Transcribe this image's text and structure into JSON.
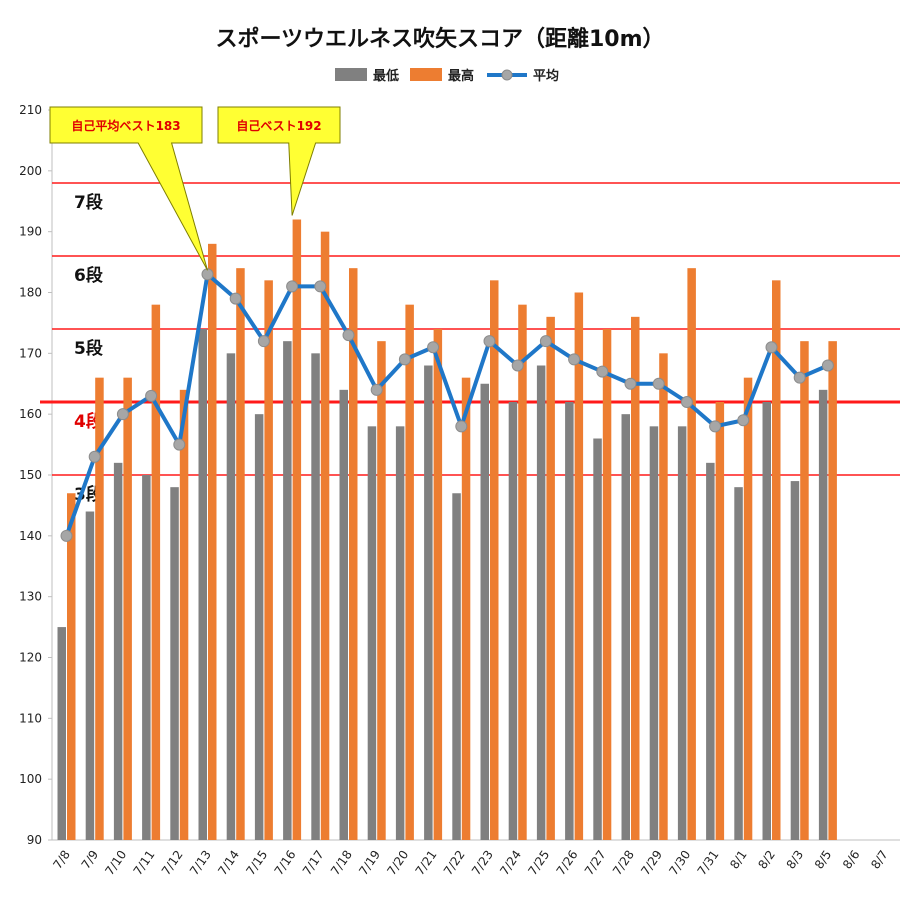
{
  "chart_data": {
    "type": "bar",
    "title": "スポーツウエルネス吹矢スコア（距離10m）",
    "categories": [
      "7/8",
      "7/9",
      "7/10",
      "7/11",
      "7/12",
      "7/13",
      "7/14",
      "7/15",
      "7/16",
      "7/17",
      "7/18",
      "7/19",
      "7/20",
      "7/21",
      "7/22",
      "7/23",
      "7/24",
      "7/25",
      "7/26",
      "7/27",
      "7/28",
      "7/29",
      "7/30",
      "7/31",
      "8/1",
      "8/2",
      "8/3",
      "8/5",
      "8/6",
      "8/7"
    ],
    "series": [
      {
        "name": "最低",
        "type": "bar",
        "color": "#808080",
        "values": [
          125,
          144,
          152,
          150,
          148,
          174,
          170,
          160,
          172,
          170,
          164,
          158,
          158,
          168,
          147,
          165,
          162,
          168,
          162,
          156,
          160,
          158,
          158,
          152,
          148,
          162,
          149,
          164,
          null,
          null
        ]
      },
      {
        "name": "最高",
        "type": "bar",
        "color": "#ed7d31",
        "values": [
          147,
          166,
          166,
          178,
          164,
          188,
          184,
          182,
          192,
          190,
          184,
          172,
          178,
          174,
          166,
          182,
          178,
          176,
          180,
          174,
          176,
          170,
          184,
          162,
          166,
          182,
          172,
          172,
          null,
          null
        ]
      },
      {
        "name": "平均",
        "type": "line",
        "color": "#1f77c8",
        "values": [
          140,
          153,
          160,
          163,
          155,
          183,
          179,
          172,
          181,
          181,
          173,
          164,
          169,
          171,
          158,
          172,
          168,
          172,
          169,
          167,
          165,
          165,
          162,
          158,
          159,
          171,
          166,
          168,
          null,
          null
        ]
      }
    ],
    "ylim": [
      90,
      210
    ],
    "yticks": [
      90,
      100,
      110,
      120,
      130,
      140,
      150,
      160,
      170,
      180,
      190,
      200,
      210
    ],
    "legend_position": "top",
    "grade_lines": [
      {
        "label": "7段",
        "value": 198,
        "label_color": "#111111"
      },
      {
        "label": "6段",
        "value": 186,
        "label_color": "#111111"
      },
      {
        "label": "5段",
        "value": 174,
        "label_color": "#111111"
      },
      {
        "label": "4段",
        "value": 162,
        "label_color": "#e00000"
      },
      {
        "label": "3段",
        "value": 150,
        "label_color": "#111111"
      }
    ],
    "callouts": [
      {
        "text": "自己平均ベスト183",
        "category": "7/13",
        "value": 183
      },
      {
        "text": "自己ベスト192",
        "category": "7/16",
        "value": 192
      }
    ]
  }
}
